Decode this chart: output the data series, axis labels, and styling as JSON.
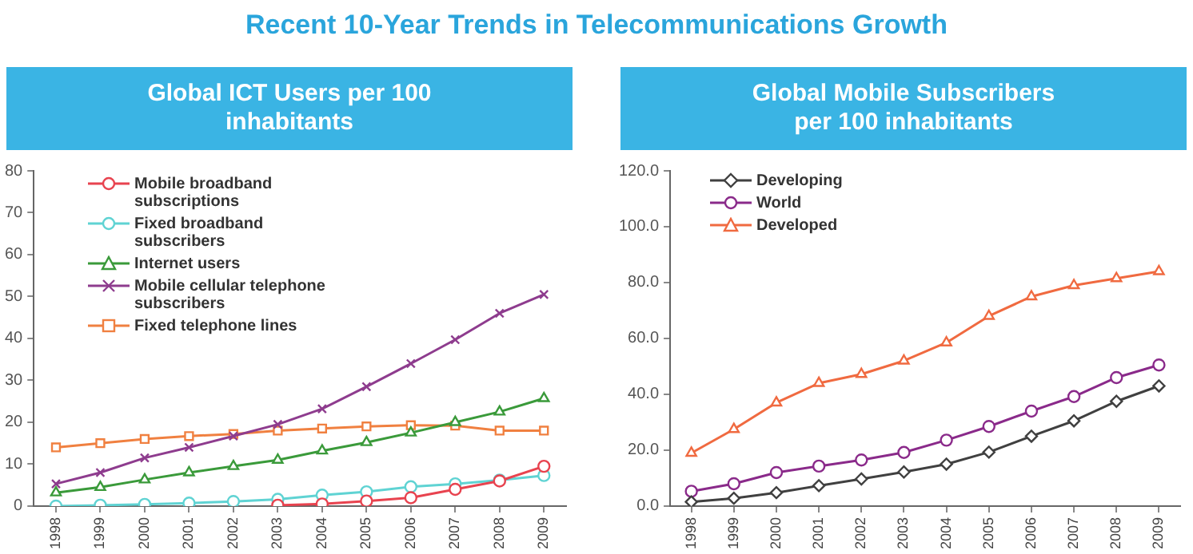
{
  "chart_data": [
    {
      "type": "line",
      "title": "Global ICT Users per 100 inhabitants",
      "annotations": [
        "Recent 10-Year Trends in Telecommunications Growth"
      ],
      "categories": [
        "1998",
        "1999",
        "2000",
        "2001",
        "2002",
        "2003",
        "2004",
        "2005",
        "2006",
        "2007",
        "2008",
        "2009"
      ],
      "series": [
        {
          "name": "Mobile broadband subscriptions",
          "color": "#e8434f",
          "marker": "circle",
          "values": [
            null,
            null,
            null,
            null,
            null,
            0.2,
            0.5,
            1.2,
            2,
            4,
            6,
            9.5
          ]
        },
        {
          "name": "Fixed broadband subscribers",
          "color": "#5fd3d3",
          "marker": "circle",
          "values": [
            0,
            0.2,
            0.4,
            0.7,
            1.1,
            1.6,
            2.6,
            3.4,
            4.6,
            5.3,
            6.2,
            7.3
          ]
        },
        {
          "name": "Internet users",
          "color": "#3a9a3a",
          "marker": "triangle",
          "values": [
            3.2,
            4.5,
            6.3,
            8,
            9.5,
            11,
            13.2,
            15.2,
            17.5,
            20,
            22.5,
            25.7
          ]
        },
        {
          "name": "Mobile cellular telephone subscribers",
          "color": "#8e3c8e",
          "marker": "cross",
          "values": [
            5.3,
            8,
            11.5,
            14,
            16.7,
            19.5,
            23.2,
            28.5,
            34,
            39.7,
            46,
            50.5
          ]
        },
        {
          "name": "Fixed telephone lines",
          "color": "#f08040",
          "marker": "square",
          "values": [
            14,
            15,
            16,
            16.7,
            17.2,
            18,
            18.5,
            19,
            19.3,
            19.2,
            18,
            18
          ]
        }
      ],
      "ylim": [
        0,
        80
      ],
      "yticks": [
        0,
        10,
        20,
        30,
        40,
        50,
        60,
        70,
        80
      ],
      "grid": false,
      "legend": "top left",
      "line_style": "solid"
    },
    {
      "type": "line",
      "title": "Global Mobile Subscribers per 100 inhabitants",
      "categories": [
        "1998",
        "1999",
        "2000",
        "2001",
        "2002",
        "2003",
        "2004",
        "2005",
        "2006",
        "2007",
        "2008",
        "2009"
      ],
      "series": [
        {
          "name": "Developing",
          "color": "#404040",
          "marker": "diamond",
          "values": [
            1.5,
            2.8,
            4.8,
            7.3,
            9.7,
            12.2,
            15,
            19.3,
            25,
            30.5,
            37.5,
            43
          ]
        },
        {
          "name": "World",
          "color": "#8a2a8a",
          "marker": "circle",
          "values": [
            5.3,
            8,
            12,
            14.3,
            16.5,
            19.2,
            23.6,
            28.5,
            34,
            39.2,
            46,
            50.5
          ]
        },
        {
          "name": "Developed",
          "color": "#f06a40",
          "marker": "triangle",
          "values": [
            19,
            27.5,
            37,
            44,
            47.2,
            52,
            58.5,
            68,
            75,
            79,
            81.5,
            84
          ]
        }
      ],
      "ylim": [
        0,
        120
      ],
      "yticks": [
        {
          "value": 0,
          "label": "0.0"
        },
        {
          "value": 20,
          "label": "20.0"
        },
        {
          "value": 40,
          "label": "40.0"
        },
        {
          "value": 60,
          "label": "60.0"
        },
        {
          "value": 80,
          "label": "80.0"
        },
        {
          "value": 100,
          "label": "100.0"
        },
        {
          "value": 120,
          "label": "120.0"
        }
      ],
      "grid": false,
      "legend": "top left",
      "line_style": "solid"
    }
  ]
}
